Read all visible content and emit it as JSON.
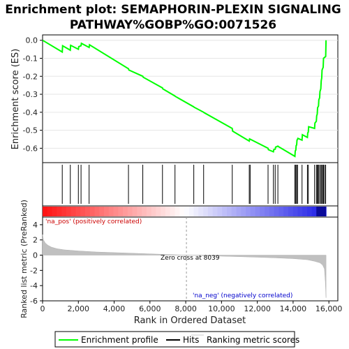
{
  "chart_data": {
    "type": "line",
    "title_line1": "Enrichment plot: SEMAPHORIN-PLEXIN SIGNALING",
    "title_line2": "PATHWAY%GOBP%GO:0071526",
    "top_panel": {
      "ylabel": "Enrichment score (ES)",
      "ylim": [
        -0.68,
        0.03
      ],
      "yticks": [
        "0.0",
        "-0.1",
        "-0.2",
        "-0.3",
        "-0.4",
        "-0.5",
        "-0.6"
      ],
      "ytick_values": [
        0.0,
        -0.1,
        -0.2,
        -0.3,
        -0.4,
        -0.5,
        -0.6
      ],
      "series": [
        {
          "name": "Enrichment profile",
          "color": "#00ff00",
          "x": [
            0,
            1100,
            1120,
            1550,
            1570,
            2000,
            2020,
            2150,
            2170,
            2600,
            2620,
            4800,
            4820,
            5600,
            5620,
            6700,
            6720,
            7400,
            7420,
            8450,
            8470,
            9000,
            9020,
            10600,
            10620,
            11550,
            11570,
            12600,
            12620,
            12900,
            12920,
            13000,
            13020,
            13150,
            13170,
            14100,
            14120,
            14150,
            14170,
            14200,
            14220,
            14250,
            14270,
            14500,
            14520,
            14800,
            14820,
            14850,
            14870,
            15200,
            15220,
            15300,
            15320,
            15350,
            15370,
            15420,
            15440,
            15480,
            15500,
            15550,
            15570,
            15600,
            15620,
            15680,
            15700,
            15820,
            15840
          ],
          "y": [
            0.0,
            -0.065,
            -0.03,
            -0.055,
            -0.028,
            -0.05,
            -0.035,
            -0.03,
            -0.017,
            -0.04,
            -0.025,
            -0.158,
            -0.165,
            -0.2,
            -0.205,
            -0.265,
            -0.27,
            -0.31,
            -0.312,
            -0.37,
            -0.372,
            -0.4,
            -0.402,
            -0.49,
            -0.505,
            -0.56,
            -0.548,
            -0.6,
            -0.608,
            -0.62,
            -0.608,
            -0.605,
            -0.594,
            -0.588,
            -0.59,
            -0.645,
            -0.615,
            -0.61,
            -0.585,
            -0.582,
            -0.555,
            -0.55,
            -0.545,
            -0.555,
            -0.525,
            -0.54,
            -0.515,
            -0.51,
            -0.48,
            -0.49,
            -0.46,
            -0.45,
            -0.42,
            -0.41,
            -0.375,
            -0.365,
            -0.33,
            -0.32,
            -0.285,
            -0.27,
            -0.225,
            -0.21,
            -0.165,
            -0.15,
            -0.1,
            -0.09,
            0.0
          ]
        }
      ],
      "hits": [
        1100,
        1550,
        2000,
        2150,
        2600,
        4800,
        5600,
        6700,
        7400,
        8450,
        9000,
        10600,
        11550,
        11600,
        12600,
        12900,
        13000,
        13150,
        14100,
        14150,
        14200,
        14250,
        14500,
        14800,
        14850,
        15200,
        15300,
        15350,
        15400,
        15420,
        15480,
        15550,
        15600,
        15650,
        15700,
        15760,
        15820
      ]
    },
    "bottom_panel": {
      "ylabel": "Ranked list metric (PreRanked)",
      "xlabel": "Rank in Ordered Dataset",
      "ylim": [
        -6,
        5
      ],
      "yticks": [
        "4",
        "2",
        "0",
        "-2",
        "-4",
        "-6"
      ],
      "ytick_values": [
        4,
        2,
        0,
        -2,
        -4,
        -6
      ],
      "xlim": [
        0,
        16500
      ],
      "xticks": [
        "0",
        "2,000",
        "4,000",
        "6,000",
        "8,000",
        "10,000",
        "12,000",
        "14,000",
        "16,000"
      ],
      "xtick_values": [
        0,
        2000,
        4000,
        6000,
        8000,
        10000,
        12000,
        14000,
        16000
      ],
      "metric_x": [
        0,
        50,
        150,
        300,
        500,
        800,
        1200,
        2000,
        3000,
        4000,
        5000,
        6000,
        7000,
        8039,
        9000,
        10000,
        11000,
        12000,
        13000,
        14000,
        14800,
        15200,
        15500,
        15650,
        15750,
        15800,
        15840
      ],
      "metric_y": [
        2.7,
        2.0,
        1.6,
        1.3,
        1.05,
        0.85,
        0.7,
        0.55,
        0.42,
        0.33,
        0.25,
        0.17,
        0.09,
        0.0,
        -0.07,
        -0.13,
        -0.2,
        -0.27,
        -0.35,
        -0.45,
        -0.6,
        -0.8,
        -1.0,
        -1.3,
        -1.8,
        -3.5,
        -5.6
      ],
      "zero_cross": 8039,
      "zero_cross_label": "Zero cross at 8039",
      "pos_label": "'na_pos' (positively correlated)",
      "neg_label": "'na_neg' (negatively correlated)"
    },
    "legend": [
      {
        "label": "Enrichment profile",
        "color": "#00ff00"
      },
      {
        "label": "Hits",
        "color": "#000000"
      },
      {
        "label": "Ranking metric scores",
        "color": "#cccccc"
      }
    ]
  }
}
